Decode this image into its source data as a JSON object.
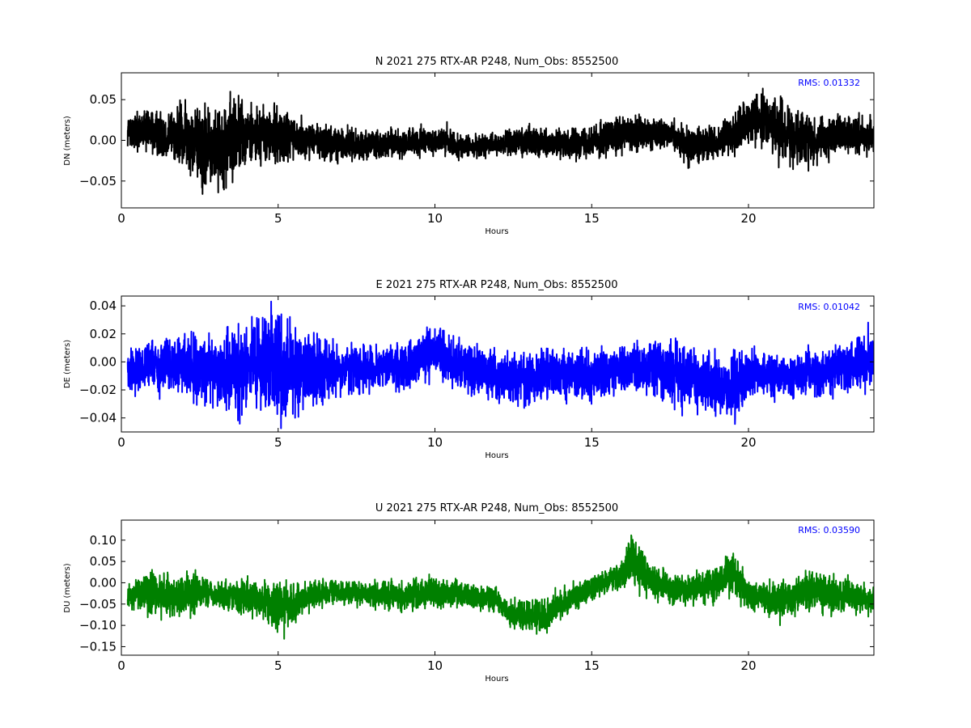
{
  "chart_data": [
    {
      "type": "line",
      "title": "N 2021 275 RTX-AR  P248, Num_Obs: 8552500",
      "xlabel": "Hours",
      "ylabel": "DN (meters)",
      "xlim": [
        0,
        24
      ],
      "ylim": [
        -0.083,
        0.083
      ],
      "xticks": [
        "0",
        "5",
        "10",
        "15",
        "20"
      ],
      "yticks": [
        "-0.05",
        "0.00",
        "0.05"
      ],
      "rms_label": "RMS:  0.01332",
      "line_color": "#000000",
      "annotation_color": "#0000ff",
      "grid": false,
      "series": [
        {
          "x": [
            0.2,
            1.0,
            2.0,
            2.5,
            3.0,
            3.5,
            4.0,
            5.0,
            6.0,
            7.0,
            8.0,
            9.0,
            10.0,
            11.0,
            12.0,
            13.0,
            14.0,
            15.0,
            16.0,
            17.0,
            17.5,
            18.0,
            19.0,
            20.0,
            20.5,
            21.0,
            22.0,
            23.0,
            24.0
          ],
          "mean": [
            0.012,
            0.01,
            0.005,
            -0.01,
            -0.01,
            0.002,
            0.008,
            0.005,
            0.0,
            -0.005,
            -0.005,
            -0.005,
            0.0,
            -0.008,
            -0.005,
            0.0,
            -0.005,
            0.0,
            0.005,
            0.01,
            0.008,
            -0.005,
            -0.005,
            0.02,
            0.03,
            0.01,
            0.0,
            0.005,
            0.005
          ],
          "amp": [
            0.02,
            0.025,
            0.032,
            0.045,
            0.04,
            0.05,
            0.032,
            0.03,
            0.02,
            0.018,
            0.015,
            0.015,
            0.015,
            0.012,
            0.012,
            0.015,
            0.015,
            0.018,
            0.02,
            0.018,
            0.015,
            0.02,
            0.018,
            0.025,
            0.03,
            0.035,
            0.025,
            0.022,
            0.02
          ]
        }
      ]
    },
    {
      "type": "line",
      "title": "E 2021 275 RTX-AR  P248, Num_Obs: 8552500",
      "xlabel": "Hours",
      "ylabel": "DE (meters)",
      "xlim": [
        0,
        24
      ],
      "ylim": [
        -0.05,
        0.047
      ],
      "xticks": [
        "0",
        "5",
        "10",
        "15",
        "20"
      ],
      "yticks": [
        "-0.04",
        "-0.02",
        "0.00",
        "0.02",
        "0.04"
      ],
      "rms_label": "RMS:  0.01042",
      "line_color": "#0000ff",
      "annotation_color": "#0000ff",
      "grid": false,
      "series": [
        {
          "x": [
            0.2,
            1.0,
            2.0,
            3.0,
            3.5,
            4.0,
            4.5,
            5.0,
            5.5,
            6.0,
            7.0,
            8.0,
            9.0,
            10.0,
            11.0,
            12.0,
            13.0,
            14.0,
            15.0,
            16.0,
            17.0,
            17.6,
            18.0,
            19.0,
            19.6,
            20.0,
            21.0,
            22.0,
            23.0,
            24.0
          ],
          "mean": [
            -0.005,
            -0.003,
            -0.003,
            -0.005,
            -0.008,
            -0.003,
            0.0,
            -0.002,
            -0.008,
            -0.005,
            -0.005,
            -0.005,
            -0.003,
            0.008,
            -0.005,
            -0.01,
            -0.012,
            -0.008,
            -0.01,
            -0.005,
            -0.005,
            -0.008,
            -0.01,
            -0.015,
            -0.018,
            -0.008,
            -0.01,
            -0.008,
            -0.005,
            0.002
          ],
          "amp": [
            0.015,
            0.015,
            0.018,
            0.022,
            0.03,
            0.025,
            0.03,
            0.035,
            0.03,
            0.022,
            0.015,
            0.015,
            0.015,
            0.015,
            0.015,
            0.015,
            0.018,
            0.015,
            0.015,
            0.015,
            0.015,
            0.022,
            0.018,
            0.018,
            0.022,
            0.015,
            0.012,
            0.015,
            0.015,
            0.018
          ]
        }
      ]
    },
    {
      "type": "line",
      "title": "U 2021 275 RTX-AR  P248, Num_Obs: 8552500",
      "xlabel": "Hours",
      "ylabel": "DU (meters)",
      "xlim": [
        0,
        24
      ],
      "ylim": [
        -0.17,
        0.147
      ],
      "xticks": [
        "0",
        "5",
        "10",
        "15",
        "20"
      ],
      "yticks": [
        "-0.15",
        "-0.10",
        "-0.05",
        "0.00",
        "0.05",
        "0.10"
      ],
      "rms_label": "RMS:  0.03590",
      "line_color": "#008000",
      "annotation_color": "#0000ff",
      "grid": false,
      "series": [
        {
          "x": [
            0.2,
            1.0,
            2.0,
            2.5,
            3.0,
            4.0,
            4.5,
            5.0,
            5.5,
            6.0,
            7.0,
            8.0,
            9.0,
            10.0,
            11.0,
            12.0,
            12.3,
            13.0,
            13.5,
            14.0,
            15.0,
            16.0,
            16.2,
            17.0,
            18.0,
            19.0,
            19.5,
            20.0,
            21.0,
            22.0,
            23.0,
            24.0
          ],
          "mean": [
            -0.03,
            -0.03,
            -0.03,
            -0.02,
            -0.03,
            -0.03,
            -0.04,
            -0.06,
            -0.055,
            -0.03,
            -0.02,
            -0.03,
            -0.03,
            -0.02,
            -0.03,
            -0.04,
            -0.07,
            -0.08,
            -0.08,
            -0.05,
            -0.01,
            0.02,
            0.06,
            0.0,
            -0.02,
            0.0,
            0.02,
            -0.03,
            -0.04,
            -0.02,
            -0.03,
            -0.04
          ],
          "amp": [
            0.02,
            0.045,
            0.045,
            0.04,
            0.025,
            0.04,
            0.04,
            0.06,
            0.04,
            0.03,
            0.025,
            0.025,
            0.035,
            0.03,
            0.025,
            0.025,
            0.03,
            0.035,
            0.035,
            0.03,
            0.025,
            0.025,
            0.055,
            0.035,
            0.03,
            0.035,
            0.04,
            0.03,
            0.035,
            0.04,
            0.035,
            0.03
          ]
        }
      ]
    }
  ]
}
